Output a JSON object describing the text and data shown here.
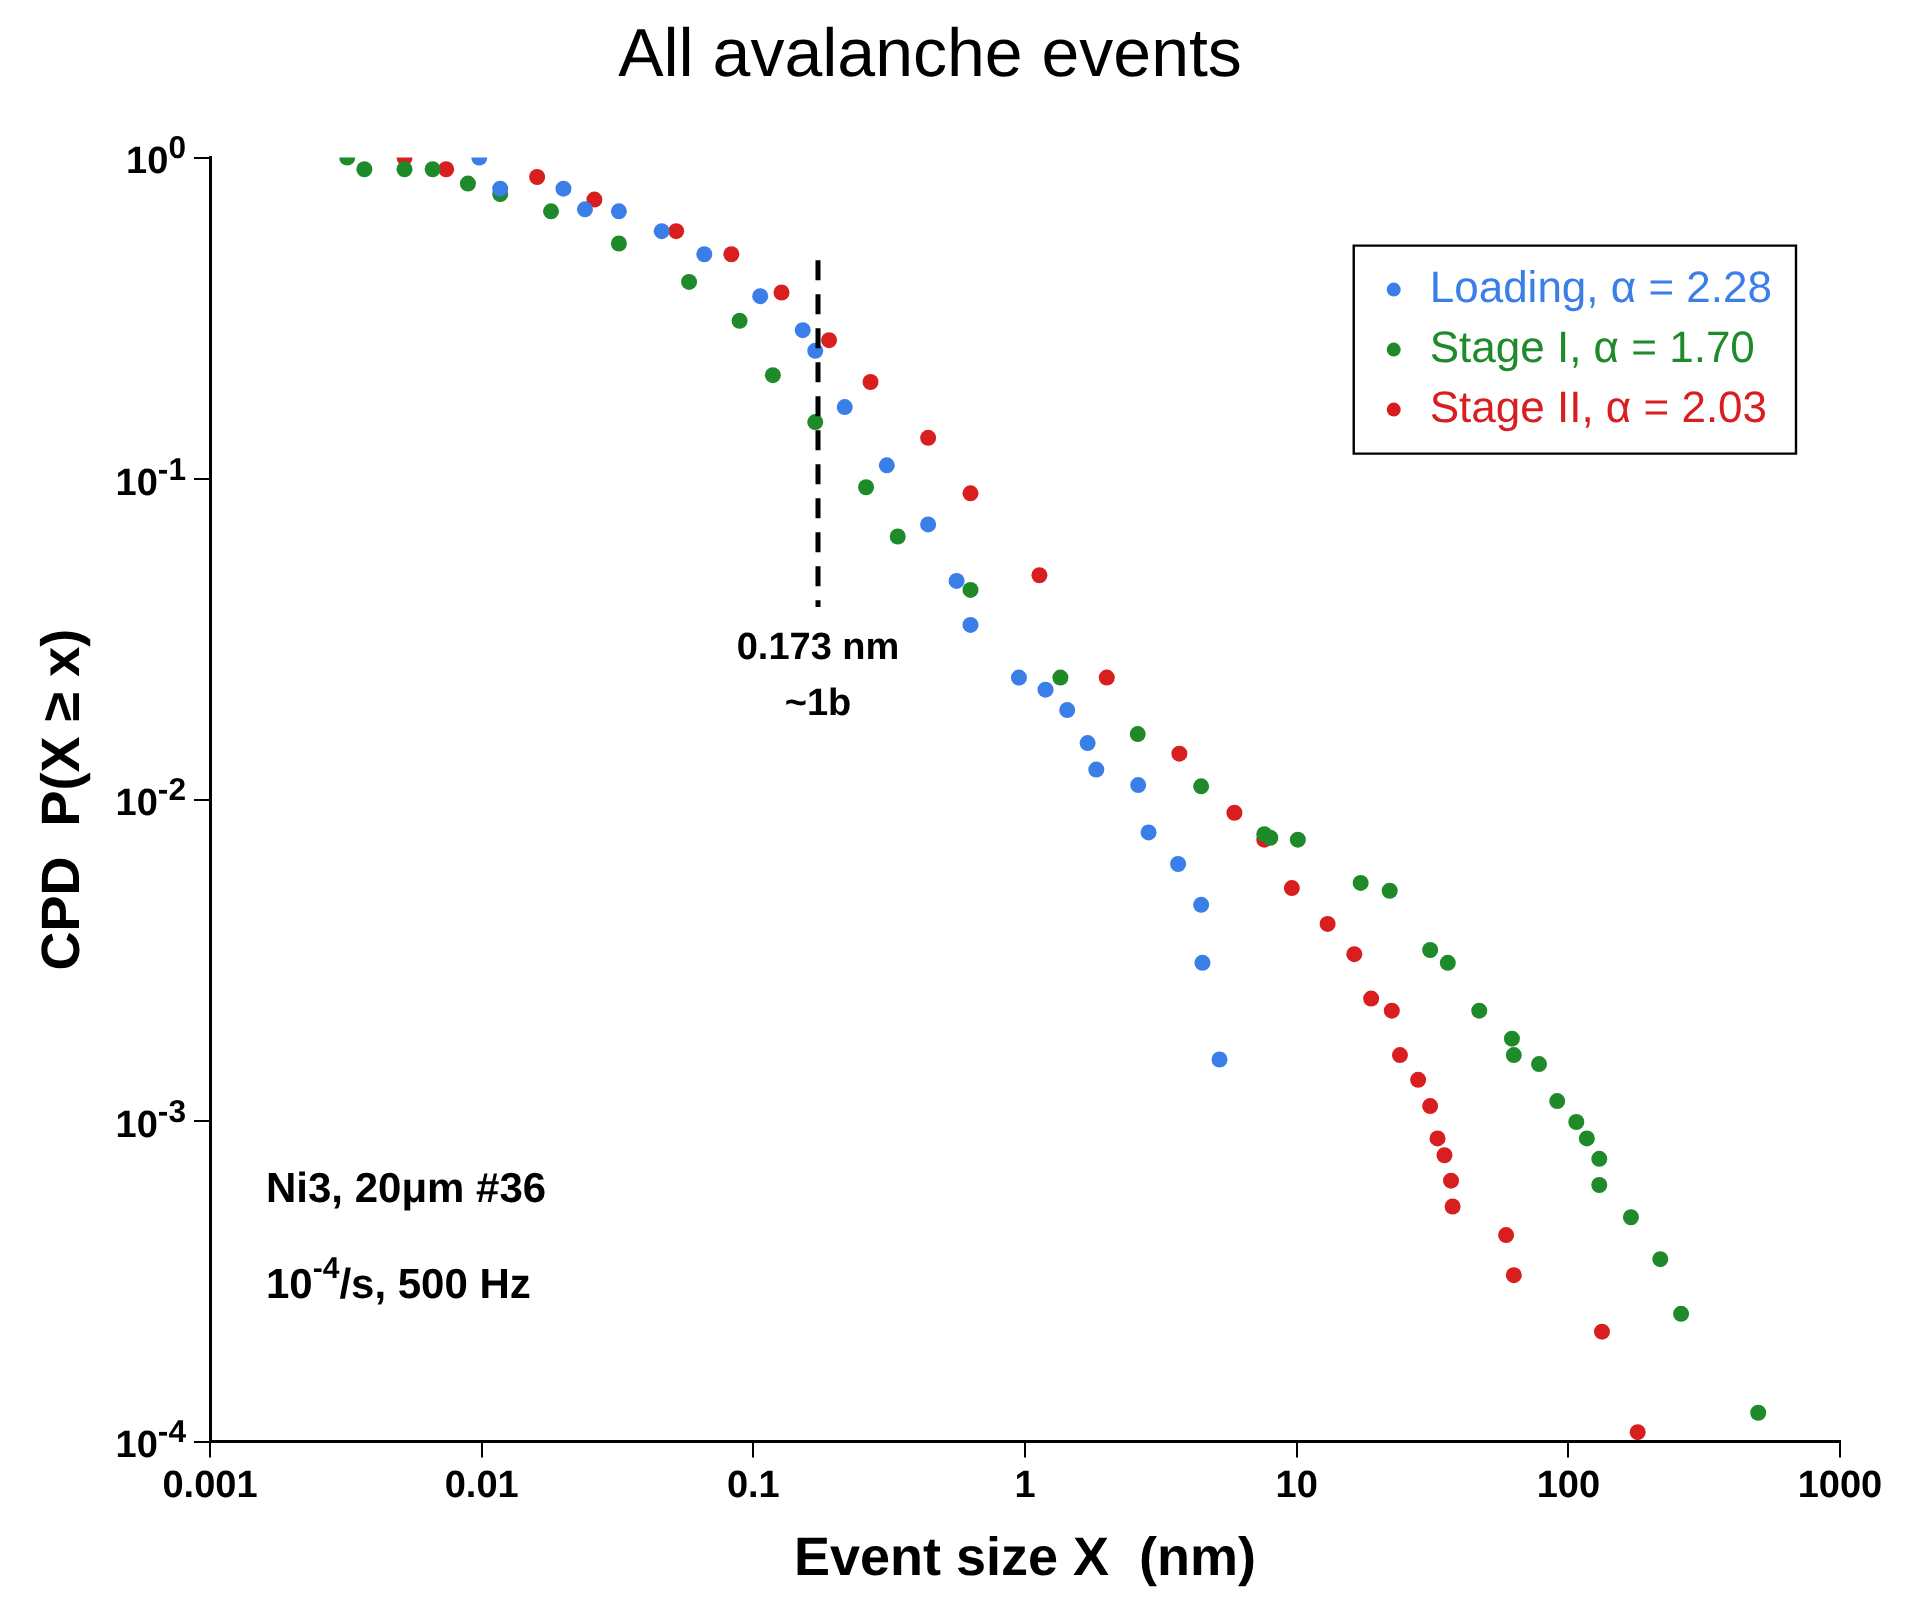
{
  "chart_data": {
    "type": "scatter",
    "title": "All avalanche events",
    "xlabel": "Event size X  (nm)",
    "ylabel": "CPD  P(X ≥ x)",
    "log": "xy",
    "marker": "circle",
    "grid": false,
    "legend": "top right",
    "xlim": [
      0.001,
      1000
    ],
    "xticks": [
      0.001,
      0.01,
      0.1,
      1,
      10,
      100,
      1000
    ],
    "ylim": [
      0.0001,
      1
    ],
    "yticks": [
      {
        "value": 1,
        "label": "10$^{0}$"
      },
      {
        "value": 0.1,
        "label": "10$^{-1}$"
      },
      {
        "value": 0.01,
        "label": "10$^{-2}$"
      },
      {
        "value": 0.001,
        "label": "10$^{-3}$"
      },
      {
        "value": 0.0001,
        "label": "10$^{-4}$"
      }
    ],
    "series": [
      {
        "name": "Loading, α = 2.28",
        "color": "#3a7ee8",
        "x": [
          0.0098,
          0.0117,
          0.02,
          0.024,
          0.032,
          0.046,
          0.066,
          0.106,
          0.152,
          0.169,
          0.217,
          0.31,
          0.44,
          0.56,
          0.63,
          0.95,
          1.19,
          1.43,
          1.7,
          1.83,
          2.61,
          2.85,
          3.66,
          4.45,
          4.5,
          5.2
        ],
        "values": [
          1.0,
          0.8,
          0.8,
          0.69,
          0.68,
          0.59,
          0.5,
          0.37,
          0.29,
          0.25,
          0.167,
          0.11,
          0.072,
          0.048,
          0.035,
          0.024,
          0.022,
          0.019,
          0.015,
          0.0124,
          0.0111,
          0.0079,
          0.0063,
          0.0047,
          0.0031,
          0.00155
        ]
      },
      {
        "name": "Stage I, α = 1.70",
        "color": "#1e8a2a",
        "x": [
          0.0032,
          0.0037,
          0.0052,
          0.0066,
          0.0089,
          0.0117,
          0.018,
          0.032,
          0.058,
          0.089,
          0.118,
          0.169,
          0.26,
          0.34,
          0.63,
          1.35,
          2.6,
          4.45,
          7.6,
          8.0,
          10.1,
          17.2,
          22,
          31,
          36,
          47,
          62,
          63,
          78,
          91,
          107,
          117,
          130,
          130,
          170,
          218,
          260,
          500
        ],
        "values": [
          1.0,
          0.92,
          0.92,
          0.92,
          0.83,
          0.77,
          0.68,
          0.54,
          0.41,
          0.31,
          0.21,
          0.15,
          0.094,
          0.066,
          0.045,
          0.024,
          0.016,
          0.011,
          0.0078,
          0.0076,
          0.0075,
          0.0055,
          0.0052,
          0.0034,
          0.0031,
          0.0022,
          0.0018,
          0.0016,
          0.0015,
          0.00115,
          0.00099,
          0.00088,
          0.00076,
          0.00063,
          0.0005,
          0.00037,
          0.00025,
          0.000123
        ]
      },
      {
        "name": "Stage II, α = 2.03",
        "color": "#d81e1e",
        "x": [
          0.0052,
          0.0074,
          0.016,
          0.026,
          0.052,
          0.083,
          0.127,
          0.19,
          0.27,
          0.44,
          0.63,
          1.13,
          2.0,
          3.7,
          5.9,
          7.6,
          9.6,
          13,
          16.3,
          18.8,
          22.4,
          24,
          28,
          31,
          33,
          35,
          37,
          37.5,
          59,
          63,
          133,
          180
        ],
        "values": [
          1.0,
          0.92,
          0.87,
          0.74,
          0.59,
          0.5,
          0.38,
          0.27,
          0.2,
          0.134,
          0.09,
          0.05,
          0.024,
          0.0139,
          0.0091,
          0.0075,
          0.0053,
          0.0041,
          0.0033,
          0.0024,
          0.0022,
          0.0016,
          0.00134,
          0.00111,
          0.00088,
          0.00078,
          0.00065,
          0.00054,
          0.00044,
          0.00033,
          0.00022,
          0.000107
        ]
      }
    ],
    "ref_lines": [
      {
        "axis": "x",
        "value": 0.173,
        "label": "0.173 nm\n~1b",
        "color": "#000000",
        "line_style": "dashed"
      }
    ],
    "annotations": [
      "Ni3, 20μm #36",
      "10$^{-4}$/s, 500 Hz"
    ]
  }
}
